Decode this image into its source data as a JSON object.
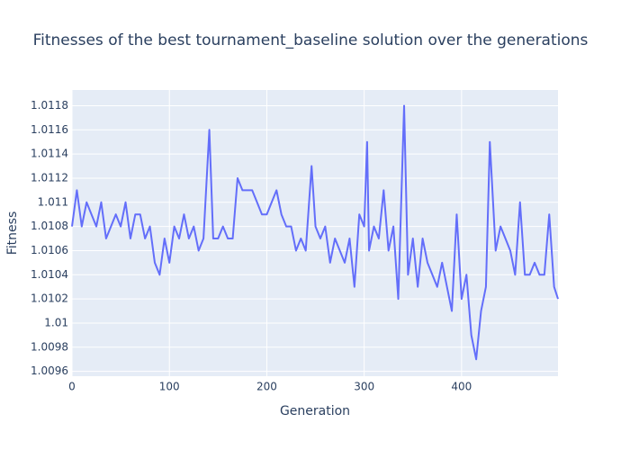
{
  "chart_data": {
    "type": "line",
    "title": "Fitnesses of the best tournament_baseline solution over the generations",
    "x_label": "Generation",
    "y_label": "Fitness",
    "x": [
      0,
      5,
      10,
      15,
      20,
      25,
      30,
      35,
      40,
      45,
      50,
      55,
      60,
      65,
      70,
      75,
      80,
      85,
      90,
      95,
      100,
      105,
      110,
      115,
      120,
      125,
      130,
      135,
      141,
      145,
      150,
      155,
      160,
      165,
      170,
      175,
      180,
      185,
      190,
      195,
      200,
      205,
      210,
      215,
      220,
      225,
      230,
      235,
      240,
      246,
      250,
      255,
      260,
      265,
      270,
      275,
      280,
      285,
      290,
      295,
      300,
      303,
      305,
      310,
      315,
      320,
      325,
      330,
      335,
      341,
      345,
      350,
      355,
      360,
      365,
      370,
      375,
      380,
      385,
      390,
      395,
      400,
      405,
      410,
      415,
      420,
      425,
      429,
      435,
      440,
      445,
      450,
      455,
      460,
      465,
      470,
      475,
      480,
      485,
      490,
      495,
      499
    ],
    "series": [
      {
        "name": "Fitness",
        "color": "#636efa",
        "values": [
          1.0108,
          1.0111,
          1.0108,
          1.011,
          1.0109,
          1.0108,
          1.011,
          1.0107,
          1.0108,
          1.0109,
          1.0108,
          1.011,
          1.0107,
          1.0109,
          1.0109,
          1.0107,
          1.0108,
          1.0105,
          1.0104,
          1.0107,
          1.0105,
          1.0108,
          1.0107,
          1.0109,
          1.0107,
          1.0108,
          1.0106,
          1.0107,
          1.0116,
          1.0107,
          1.0107,
          1.0108,
          1.0107,
          1.0107,
          1.0112,
          1.0111,
          1.0111,
          1.0111,
          1.011,
          1.0109,
          1.0109,
          1.011,
          1.0111,
          1.0109,
          1.0108,
          1.0108,
          1.0106,
          1.0107,
          1.0106,
          1.0113,
          1.0108,
          1.0107,
          1.0108,
          1.0105,
          1.0107,
          1.0106,
          1.0105,
          1.0107,
          1.0103,
          1.0109,
          1.0108,
          1.0115,
          1.0106,
          1.0108,
          1.0107,
          1.0111,
          1.0106,
          1.0108,
          1.0102,
          1.0118,
          1.0104,
          1.0107,
          1.0103,
          1.0107,
          1.0105,
          1.0104,
          1.0103,
          1.0105,
          1.0103,
          1.0101,
          1.0109,
          1.0102,
          1.0104,
          1.0099,
          1.0097,
          1.0101,
          1.0103,
          1.0115,
          1.0106,
          1.0108,
          1.0107,
          1.0106,
          1.0104,
          1.011,
          1.0104,
          1.0104,
          1.0105,
          1.0104,
          1.0104,
          1.0109,
          1.0103,
          1.0102
        ]
      }
    ],
    "xlim": [
      0,
      499
    ],
    "xticks": [
      0,
      100,
      200,
      300,
      400
    ],
    "ylim": [
      1.00956,
      1.01193
    ],
    "yticks": [
      1.0096,
      1.0098,
      1.01,
      1.0102,
      1.0104,
      1.0106,
      1.0108,
      1.011,
      1.0112,
      1.0114,
      1.0116,
      1.0118
    ],
    "grid": true
  }
}
